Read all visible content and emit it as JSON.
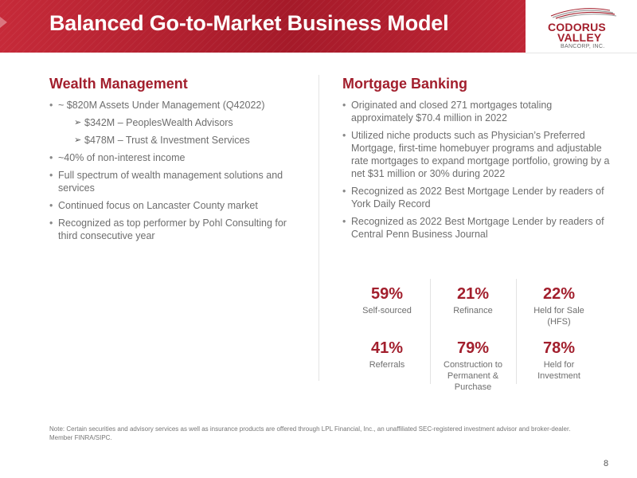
{
  "header": {
    "title": "Balanced Go-to-Market Business Model",
    "band_color": "#b41f2e"
  },
  "logo": {
    "line1": "CODORUS",
    "line2": "VALLEY",
    "line3": "BANCORP, INC.",
    "icon": "codorus-valley-logo-mark"
  },
  "wealth": {
    "title": "Wealth Management",
    "items": [
      "~ $820M Assets Under Management (Q42022)",
      "$342M – PeoplesWealth Advisors",
      "$478M – Trust & Investment Services",
      "~40% of non-interest income",
      "Full spectrum of wealth management solutions and services",
      "Continued focus on Lancaster County market",
      "Recognized as top performer by Pohl Consulting for third consecutive year"
    ]
  },
  "mortgage": {
    "title": "Mortgage Banking",
    "items": [
      "Originated and closed 271 mortgages totaling approximately $70.4 million in 2022",
      "Utilized niche products such as Physician’s Preferred Mortgage, first-time homebuyer programs and adjustable rate mortgages to expand mortgage portfolio, growing by a net $31 million or 30% during 2022",
      "Recognized as 2022 Best Mortgage Lender by readers of York Daily Record",
      "Recognized as 2022 Best Mortgage Lender by readers of Central Penn Business Journal"
    ]
  },
  "stats": {
    "col1": {
      "top": {
        "pct": "59%",
        "label": "Self-sourced"
      },
      "bottom": {
        "pct": "41%",
        "label": "Referrals"
      }
    },
    "col2": {
      "top": {
        "pct": "21%",
        "label": "Refinance"
      },
      "bottom": {
        "pct": "79%",
        "label": "Construction to Permanent & Purchase"
      }
    },
    "col3": {
      "top": {
        "pct": "22%",
        "label": "Held for Sale (HFS)"
      },
      "bottom": {
        "pct": "78%",
        "label": "Held for Investment"
      }
    }
  },
  "footnote": "Note: Certain securities and advisory services as well as insurance products are offered through LPL Financial, Inc., an unaffiliated SEC-registered investment advisor and broker-dealer. Member FINRA/SIPC.",
  "page_number": "8",
  "colors": {
    "accent": "#a21f2d",
    "body_text": "#6e6e6e"
  }
}
